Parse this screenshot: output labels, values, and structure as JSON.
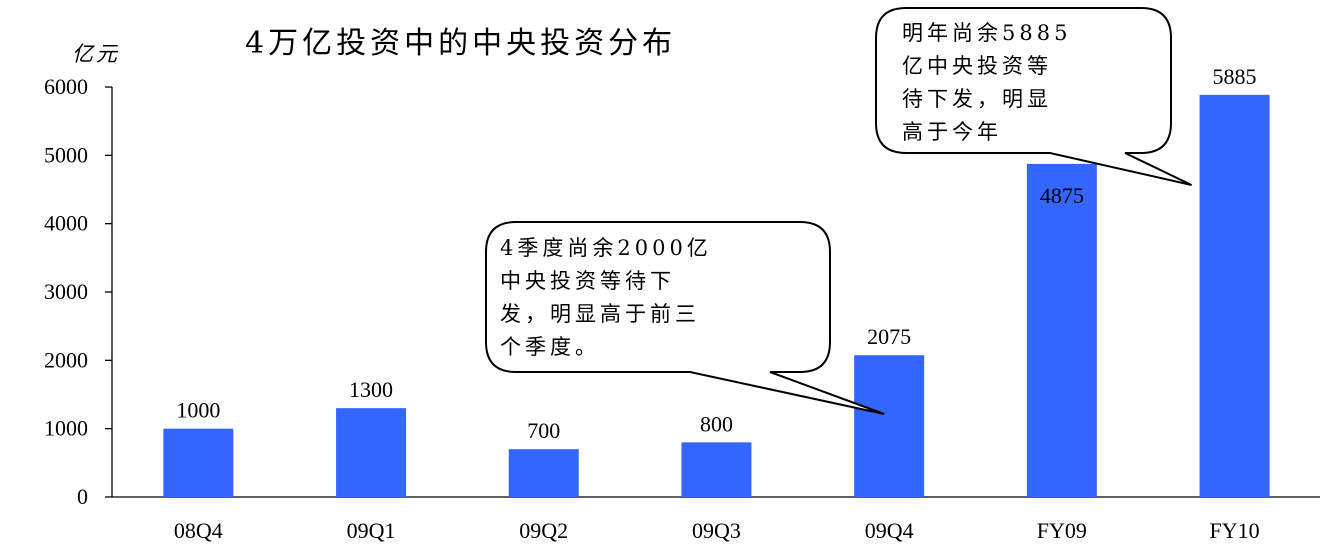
{
  "chart_data": {
    "type": "bar",
    "title": "4万亿投资中的中央投资分布",
    "ylabel": "亿元",
    "xlabel": "",
    "categories": [
      "08Q4",
      "09Q1",
      "09Q2",
      "09Q3",
      "09Q4",
      "FY09",
      "FY10"
    ],
    "values": [
      1000,
      1300,
      700,
      800,
      2075,
      4875,
      5885
    ],
    "ylim": [
      0,
      6000
    ],
    "yticks": [
      0,
      1000,
      2000,
      3000,
      4000,
      5000,
      6000
    ],
    "bar_color": "#3366ff",
    "grid": false,
    "annotations": [
      {
        "target": "09Q4",
        "lines": [
          "4季度尚余2000亿",
          "中央投资等待下",
          "发，明显高于前三",
          "个季度。"
        ]
      },
      {
        "target": "FY10",
        "lines": [
          "明年尚余5885",
          "亿中央投资等",
          "待下发，明显",
          "高于今年"
        ]
      }
    ]
  }
}
